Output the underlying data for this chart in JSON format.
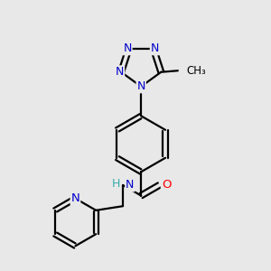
{
  "background_color": "#e8e8e8",
  "bond_color": "#000000",
  "nitrogen_color": "#0000cc",
  "oxygen_color": "#ff0000",
  "h_color": "#3aabab",
  "line_width": 1.6,
  "dbo": 0.012,
  "figsize": [
    3.0,
    3.0
  ],
  "dpi": 100,
  "xlim": [
    0.05,
    0.95
  ],
  "ylim": [
    0.02,
    0.98
  ]
}
